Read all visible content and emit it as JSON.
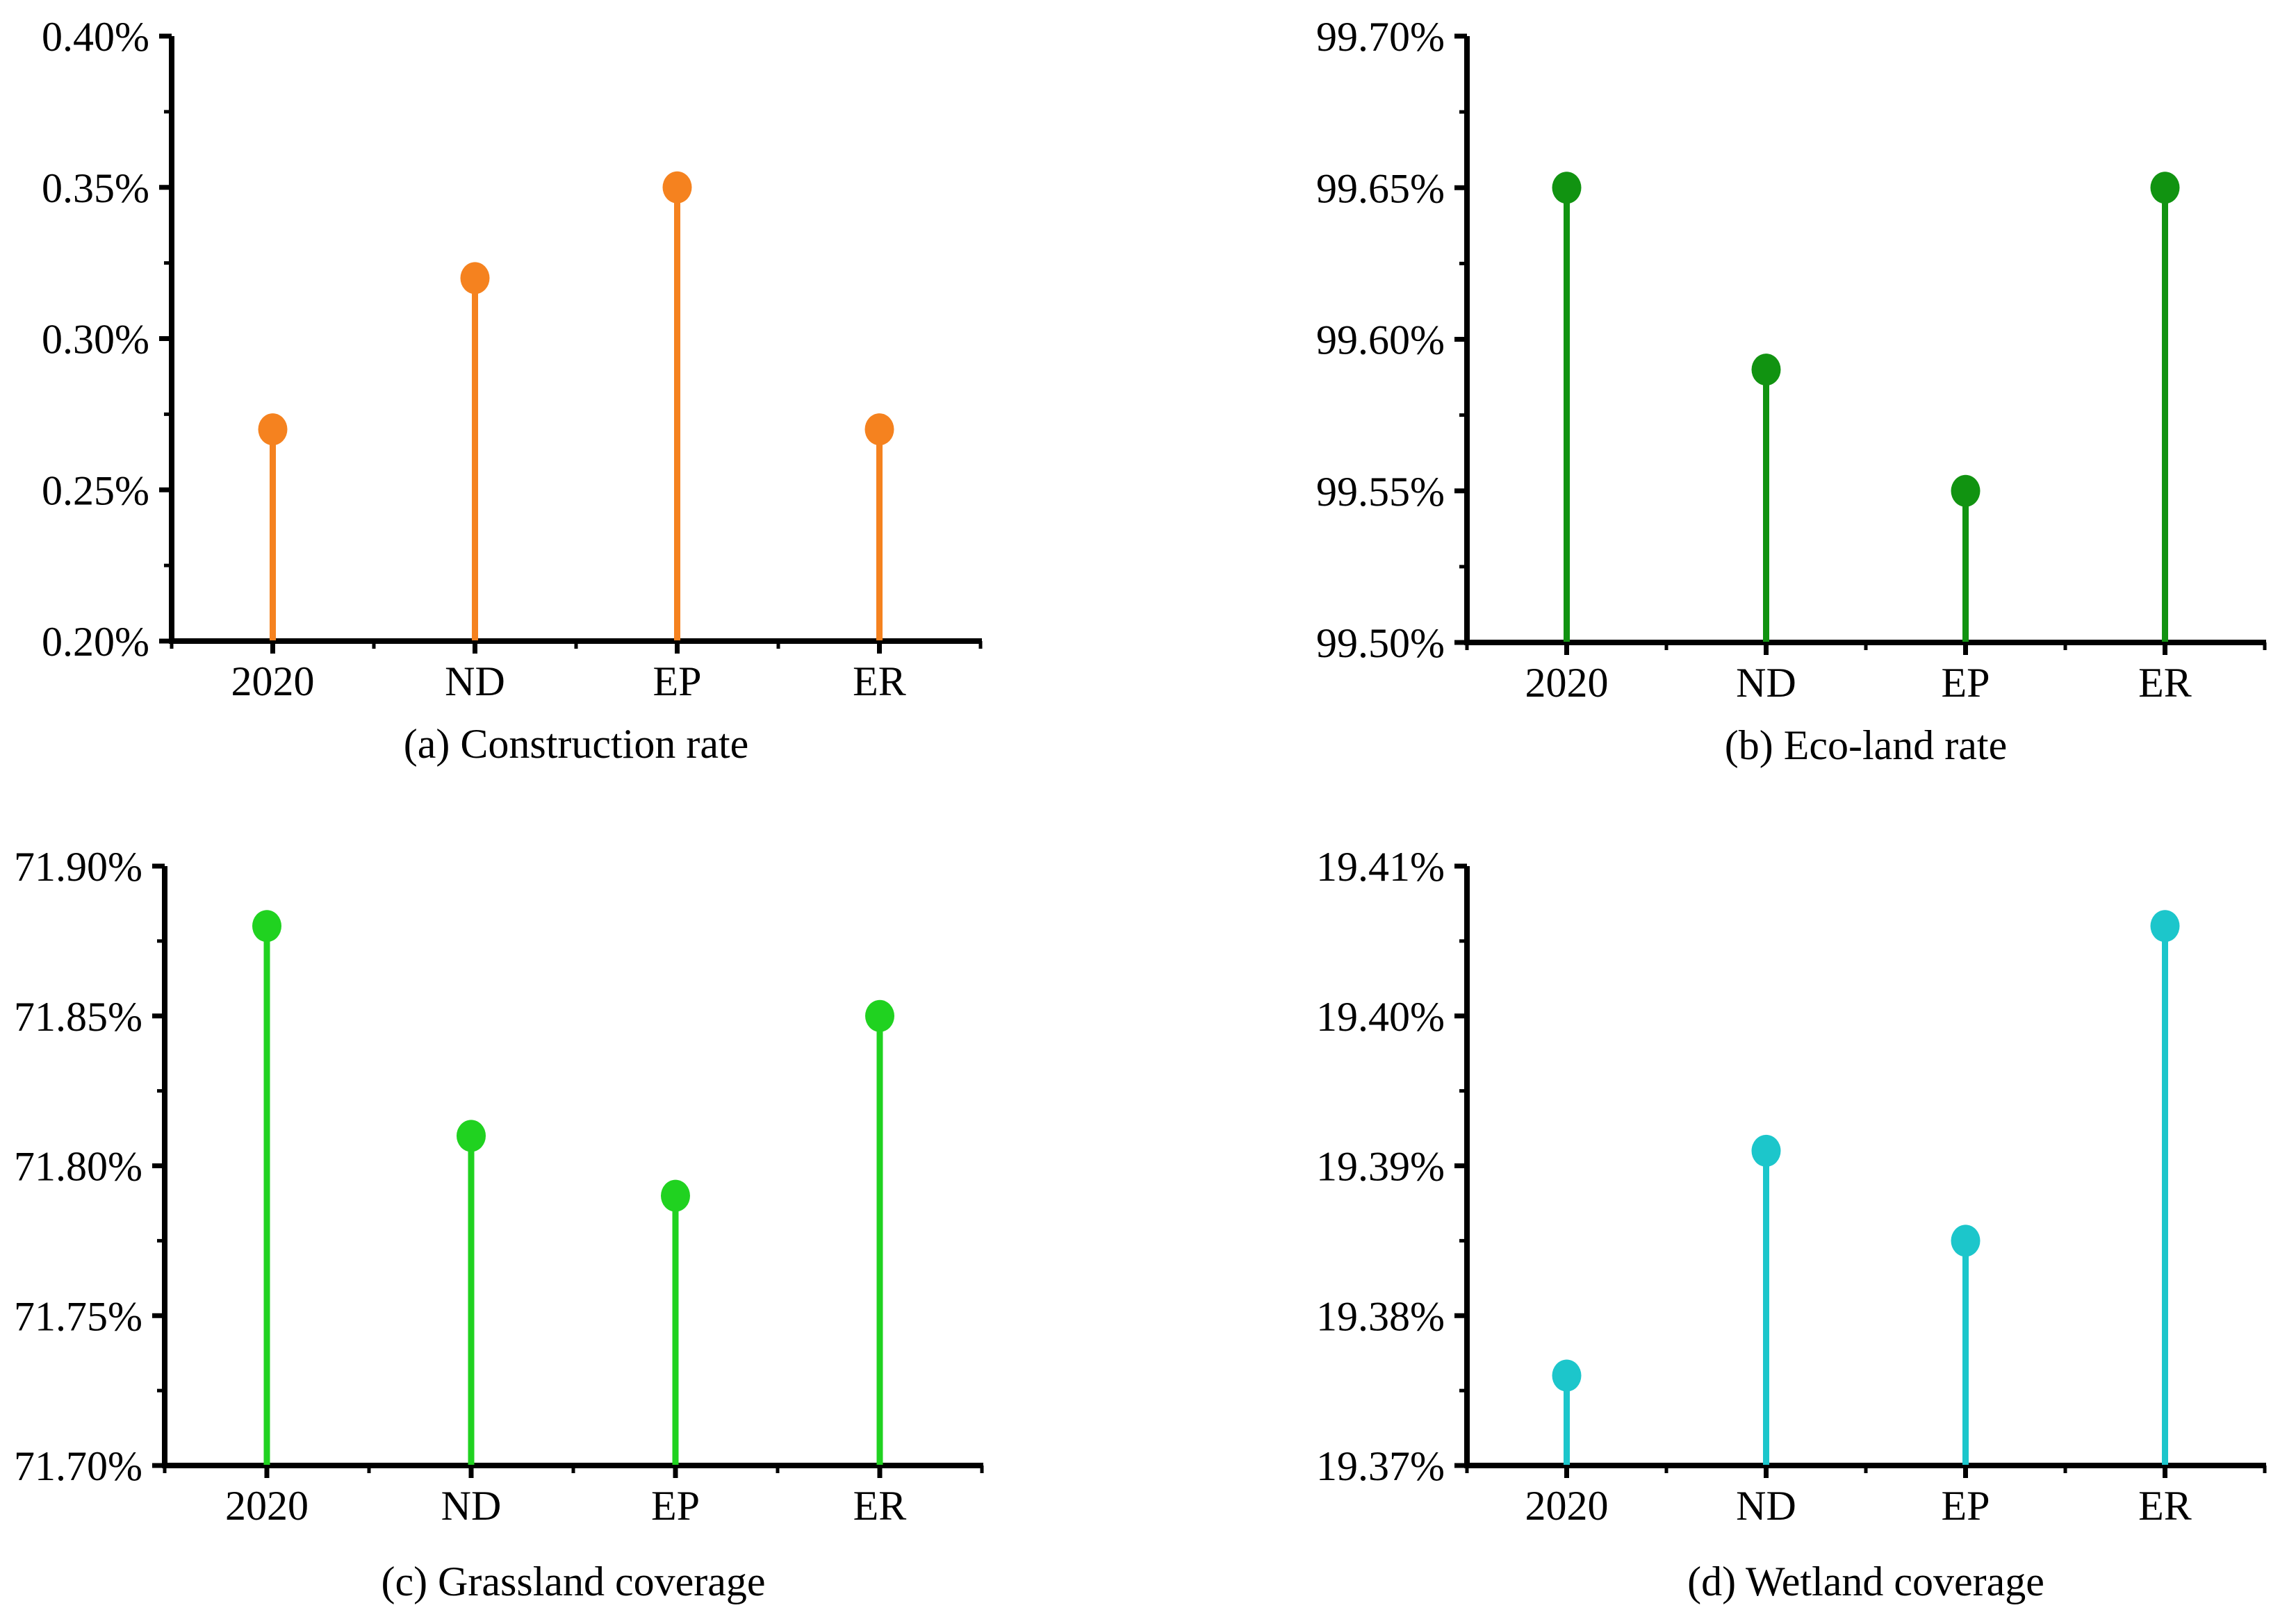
{
  "page": {
    "background": "#ffffff",
    "axis_color": "#000000",
    "text_color": "#000000"
  },
  "chart_data": [
    {
      "panel": "a",
      "type": "scatter",
      "variant": "lollipop-stem",
      "caption": "(a) Construction rate",
      "categories": [
        "2020",
        "ND",
        "EP",
        "ER"
      ],
      "values": [
        0.27,
        0.32,
        0.35,
        0.27
      ],
      "unit": "%",
      "ylim": [
        0.2,
        0.4
      ],
      "yticks": [
        0.2,
        0.25,
        0.3,
        0.35,
        0.4
      ],
      "ytick_labels": [
        "0.20%",
        "0.25%",
        "0.30%",
        "0.35%",
        "0.40%"
      ],
      "minor_ticks": true,
      "grid": false,
      "xlabel": "",
      "ylabel": "",
      "color": "#F5821F"
    },
    {
      "panel": "b",
      "type": "scatter",
      "variant": "lollipop-stem",
      "caption": "(b) Eco-land rate",
      "categories": [
        "2020",
        "ND",
        "EP",
        "ER"
      ],
      "values": [
        99.65,
        99.59,
        99.55,
        99.65
      ],
      "unit": "%",
      "ylim": [
        99.5,
        99.7
      ],
      "yticks": [
        99.5,
        99.55,
        99.6,
        99.65,
        99.7
      ],
      "ytick_labels": [
        "99.50%",
        "99.55%",
        "99.60%",
        "99.65%",
        "99.70%"
      ],
      "minor_ticks": true,
      "grid": false,
      "xlabel": "",
      "ylabel": "",
      "color": "#119311"
    },
    {
      "panel": "c",
      "type": "scatter",
      "variant": "lollipop-stem",
      "caption": "(c) Grassland coverage",
      "categories": [
        "2020",
        "ND",
        "EP",
        "ER"
      ],
      "values": [
        71.88,
        71.81,
        71.79,
        71.85
      ],
      "unit": "%",
      "ylim": [
        71.7,
        71.9
      ],
      "yticks": [
        71.7,
        71.75,
        71.8,
        71.85,
        71.9
      ],
      "ytick_labels": [
        "71.70%",
        "71.75%",
        "71.80%",
        "71.85%",
        "71.90%"
      ],
      "minor_ticks": true,
      "grid": false,
      "xlabel": "",
      "ylabel": "",
      "color": "#20D220"
    },
    {
      "panel": "d",
      "type": "scatter",
      "variant": "lollipop-stem",
      "caption": "(d) Wetland coverage",
      "categories": [
        "2020",
        "ND",
        "EP",
        "ER"
      ],
      "values": [
        19.376,
        19.391,
        19.385,
        19.406
      ],
      "unit": "%",
      "ylim": [
        19.37,
        19.41
      ],
      "yticks": [
        19.37,
        19.38,
        19.39,
        19.4,
        19.41
      ],
      "ytick_labels": [
        "19.37%",
        "19.38%",
        "19.39%",
        "19.40%",
        "19.41%"
      ],
      "minor_ticks": true,
      "grid": false,
      "xlabel": "",
      "ylabel": "",
      "color": "#1CC6CB"
    }
  ]
}
